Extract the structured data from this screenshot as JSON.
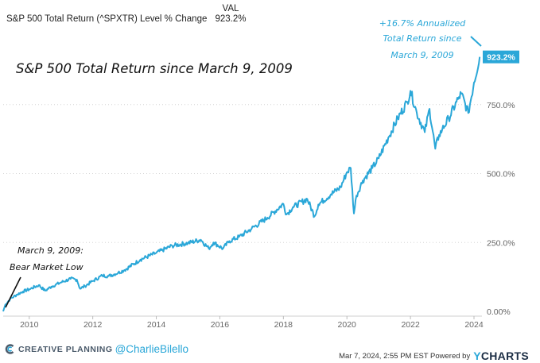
{
  "header": {
    "series_name": "S&P 500 Total Return (^SPXTR) Level % Change",
    "value_heading": "VAL",
    "value": "923.2%"
  },
  "chart_data": {
    "type": "line",
    "title": "S&P 500 Total Return since March 9, 2009",
    "xlabel": "",
    "ylabel": "",
    "x_ticks": [
      "2010",
      "2012",
      "2014",
      "2016",
      "2018",
      "2020",
      "2022",
      "2024"
    ],
    "y_ticks": [
      "0.00%",
      "250.0%",
      "500.0%",
      "750.0%"
    ],
    "ylim": [
      0,
      1000
    ],
    "xlim": [
      2009.18,
      2024.25
    ],
    "grid": "horizontal dotted",
    "series": [
      {
        "name": "S&P 500 Total Return (^SPXTR) Level % Change",
        "color": "#2aa7d8",
        "x": [
          2009.18,
          2009.25,
          2009.4,
          2009.6,
          2009.8,
          2010.0,
          2010.3,
          2010.5,
          2010.7,
          2011.0,
          2011.3,
          2011.5,
          2011.6,
          2011.75,
          2012.0,
          2012.3,
          2012.5,
          2012.8,
          2013.0,
          2013.5,
          2014.0,
          2014.5,
          2015.0,
          2015.4,
          2015.65,
          2015.8,
          2016.1,
          2016.3,
          2016.6,
          2017.0,
          2017.5,
          2018.0,
          2018.1,
          2018.3,
          2018.75,
          2018.98,
          2019.1,
          2019.5,
          2019.8,
          2020.0,
          2020.12,
          2020.22,
          2020.3,
          2020.5,
          2020.8,
          2021.0,
          2021.3,
          2021.6,
          2021.9,
          2022.0,
          2022.2,
          2022.45,
          2022.6,
          2022.78,
          2022.9,
          2023.0,
          2023.2,
          2023.5,
          2023.6,
          2023.82,
          2024.0,
          2024.18
        ],
        "values": [
          0,
          25,
          45,
          60,
          72,
          80,
          95,
          75,
          90,
          105,
          118,
          115,
          82,
          92,
          110,
          130,
          128,
          140,
          150,
          188,
          212,
          238,
          248,
          260,
          228,
          250,
          228,
          255,
          270,
          300,
          340,
          390,
          352,
          378,
          408,
          345,
          388,
          425,
          450,
          505,
          520,
          355,
          420,
          475,
          520,
          555,
          630,
          700,
          760,
          800,
          720,
          650,
          735,
          590,
          640,
          660,
          700,
          770,
          790,
          720,
          830,
          923.2
        ]
      }
    ],
    "last_value_label": "923.2%",
    "annotations": [
      "+16.7% Annualized",
      "Total Return since",
      "March 9, 2009",
      "March 9, 2009:",
      "Bear Market Low"
    ]
  },
  "footer": {
    "brand": "CREATIVE PLANNING",
    "handle": "@CharlieBilello",
    "timestamp": "Mar 7, 2024, 2:55 PM EST Powered by",
    "ycharts_y": "Y",
    "ycharts_rest": "CHARTS"
  }
}
